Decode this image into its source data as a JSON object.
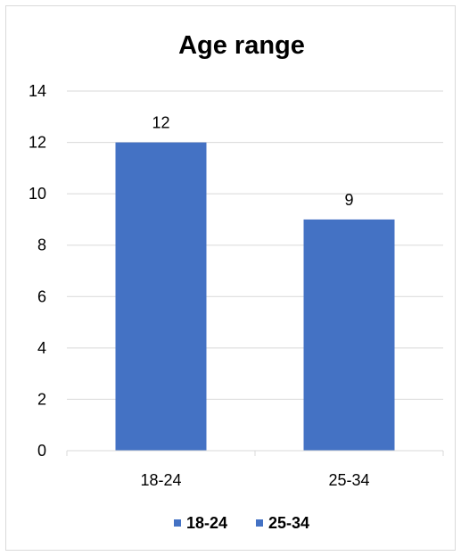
{
  "chart_data": {
    "type": "bar",
    "title": "Age range",
    "xlabel": "",
    "ylabel": "",
    "categories": [
      "18-24",
      "25-34"
    ],
    "values": [
      12,
      9
    ],
    "data_labels": [
      "12",
      "9"
    ],
    "ylim": [
      0,
      14
    ],
    "yticks": [
      0,
      2,
      4,
      6,
      8,
      10,
      12,
      14
    ],
    "ytick_labels": [
      "0",
      "2",
      "4",
      "6",
      "8",
      "10",
      "12",
      "14"
    ],
    "grid": true,
    "bar_color": "#4472C4",
    "grid_color": "#D9D9D9",
    "legend": {
      "position": "bottom",
      "entries": [
        {
          "label": "18-24",
          "color": "#4472C4"
        },
        {
          "label": "25-34",
          "color": "#4472C4"
        }
      ]
    }
  }
}
